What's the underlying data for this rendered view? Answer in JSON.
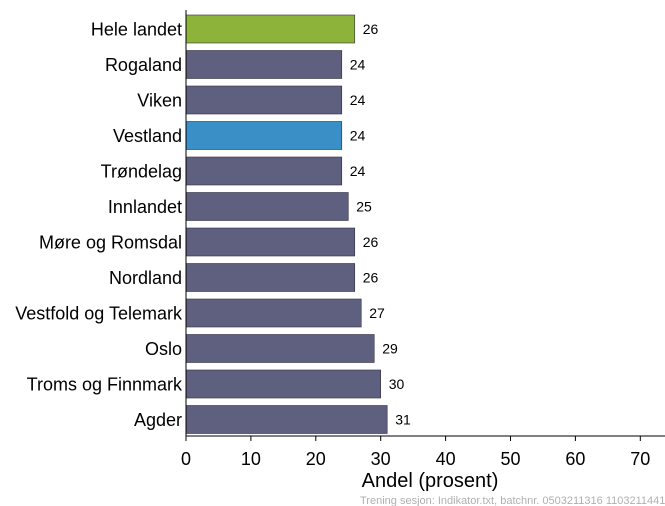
{
  "chart_data": {
    "type": "bar",
    "orientation": "horizontal",
    "categories": [
      "Hele landet",
      "Rogaland",
      "Viken",
      "Vestland",
      "Trøndelag",
      "Innlandet",
      "Møre og Romsdal",
      "Nordland",
      "Vestfold og Telemark",
      "Oslo",
      "Troms og Finnmark",
      "Agder"
    ],
    "values": [
      26,
      24,
      24,
      24,
      24,
      25,
      26,
      26,
      27,
      29,
      30,
      31
    ],
    "bar_colors": [
      "#8db33a",
      "#5f6080",
      "#5f6080",
      "#3a8fc7",
      "#5f6080",
      "#5f6080",
      "#5f6080",
      "#5f6080",
      "#5f6080",
      "#5f6080",
      "#5f6080",
      "#5f6080"
    ],
    "xlabel": "Andel (prosent)",
    "xlim": [
      0,
      73
    ],
    "xticks": [
      0,
      10,
      20,
      30,
      40,
      50,
      60,
      70
    ],
    "grid": false
  },
  "footer_note": "Trening sesjon: Indikator.txt, batchnr. 0503211316 1103211441"
}
